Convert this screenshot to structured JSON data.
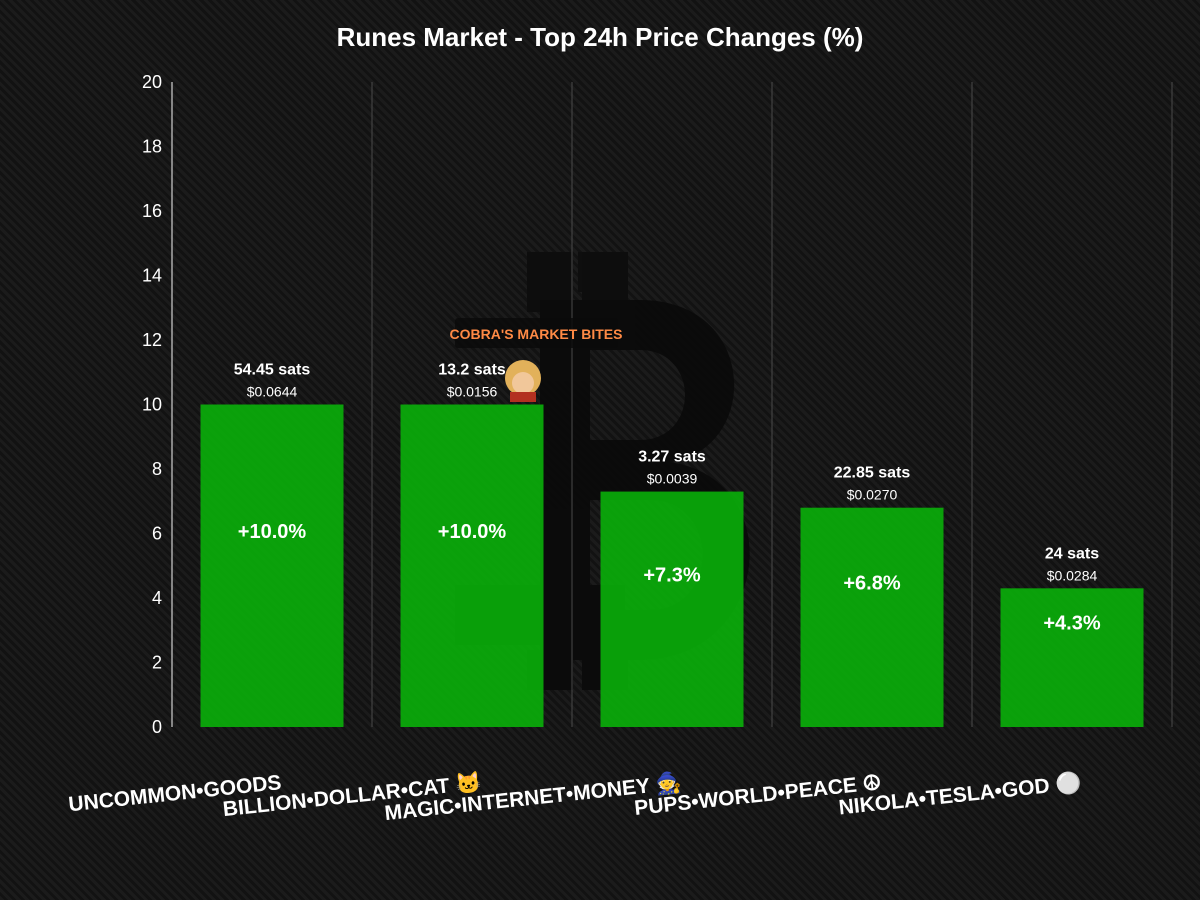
{
  "chart_data": {
    "type": "bar",
    "title": "Runes Market - Top 24h Price Changes (%)",
    "xlabel": "",
    "ylabel": "",
    "ylim": [
      0,
      20
    ],
    "yticks": [
      0,
      2,
      4,
      6,
      8,
      10,
      12,
      14,
      16,
      18,
      20
    ],
    "grid": "vertical",
    "bar_color": "#0aab0a",
    "categories": [
      "UNCOMMON•GOODS",
      "BILLION•DOLLAR•CAT 🐱",
      "MAGIC•INTERNET•MONEY 🧙",
      "PUPS•WORLD•PEACE ☮",
      "NIKOLA•TESLA•GOD ⚪"
    ],
    "values": [
      10.0,
      10.0,
      7.3,
      6.8,
      4.3
    ],
    "value_labels": [
      "+10.0%",
      "+10.0%",
      "+7.3%",
      "+6.8%",
      "+4.3%"
    ],
    "sats_labels": [
      "54.45 sats",
      "13.2 sats",
      "3.27 sats",
      "22.85 sats",
      "24 sats"
    ],
    "usd_labels": [
      "$0.0644",
      "$0.0156",
      "$0.0039",
      "$0.0270",
      "$0.0284"
    ]
  },
  "watermark": {
    "text": "COBRA'S MARKET BITES",
    "icon": "bitcoin-logo-icon",
    "avatar_icon": "cobra-avatar-icon"
  }
}
